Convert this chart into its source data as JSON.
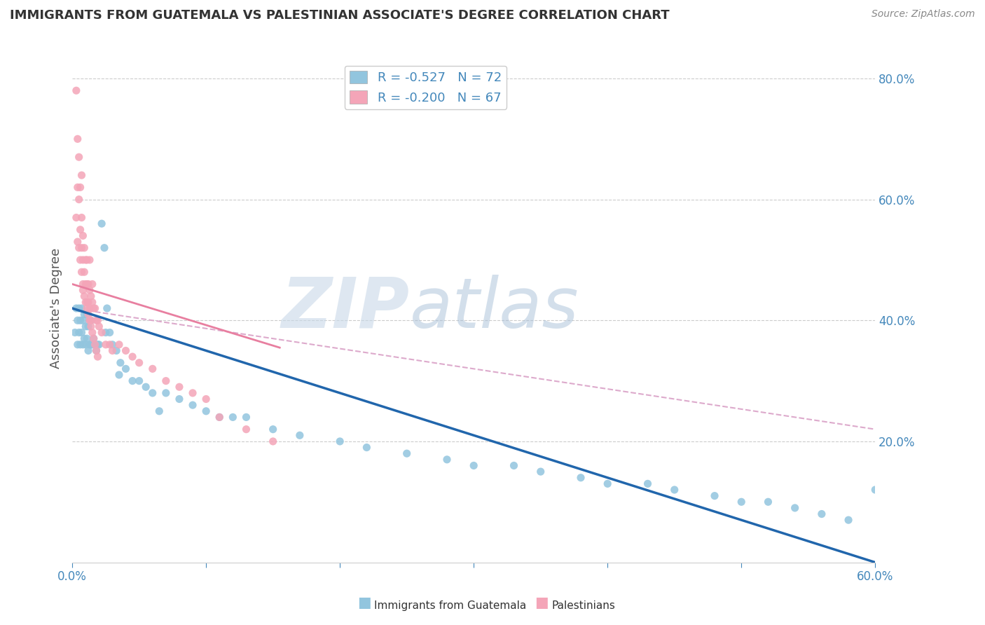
{
  "title": "IMMIGRANTS FROM GUATEMALA VS PALESTINIAN ASSOCIATE'S DEGREE CORRELATION CHART",
  "source": "Source: ZipAtlas.com",
  "ylabel_label": "Associate's Degree",
  "legend_label1": "Immigrants from Guatemala",
  "legend_label2": "Palestinians",
  "r1": -0.527,
  "n1": 72,
  "r2": -0.2,
  "n2": 67,
  "xlim": [
    0.0,
    0.6
  ],
  "ylim": [
    0.0,
    0.84
  ],
  "xticks_show": [
    0.0,
    0.6
  ],
  "yticks": [
    0.2,
    0.4,
    0.6,
    0.8
  ],
  "yticks_grid": [
    0.2,
    0.4,
    0.6,
    0.8
  ],
  "color_blue": "#92c5de",
  "color_pink": "#f4a5b8",
  "color_trend_blue": "#2166ac",
  "color_trend_pink": "#e87fa0",
  "color_dashed": "#ddaacc",
  "blue_trend_x0": 0.0,
  "blue_trend_y0": 0.42,
  "blue_trend_x1": 0.6,
  "blue_trend_y1": 0.0,
  "pink_trend_x0": 0.0,
  "pink_trend_y0": 0.46,
  "pink_trend_x1": 0.155,
  "pink_trend_y1": 0.355,
  "dash_trend_x0": 0.0,
  "dash_trend_y0": 0.42,
  "dash_trend_x1": 0.6,
  "dash_trend_y1": 0.22,
  "blue_x": [
    0.002,
    0.003,
    0.004,
    0.004,
    0.005,
    0.005,
    0.006,
    0.006,
    0.007,
    0.007,
    0.008,
    0.008,
    0.009,
    0.009,
    0.01,
    0.01,
    0.011,
    0.011,
    0.012,
    0.012,
    0.013,
    0.013,
    0.014,
    0.014,
    0.015,
    0.016,
    0.017,
    0.018,
    0.019,
    0.02,
    0.022,
    0.024,
    0.026,
    0.028,
    0.03,
    0.033,
    0.036,
    0.04,
    0.045,
    0.05,
    0.055,
    0.06,
    0.07,
    0.08,
    0.09,
    0.1,
    0.11,
    0.12,
    0.13,
    0.15,
    0.17,
    0.2,
    0.22,
    0.25,
    0.28,
    0.3,
    0.33,
    0.35,
    0.38,
    0.4,
    0.43,
    0.45,
    0.48,
    0.5,
    0.52,
    0.54,
    0.56,
    0.58,
    0.6,
    0.025,
    0.035,
    0.065
  ],
  "blue_y": [
    0.38,
    0.42,
    0.36,
    0.4,
    0.38,
    0.42,
    0.36,
    0.4,
    0.38,
    0.42,
    0.36,
    0.4,
    0.37,
    0.41,
    0.36,
    0.39,
    0.37,
    0.41,
    0.35,
    0.39,
    0.36,
    0.4,
    0.36,
    0.4,
    0.36,
    0.37,
    0.36,
    0.35,
    0.36,
    0.36,
    0.56,
    0.52,
    0.42,
    0.38,
    0.36,
    0.35,
    0.33,
    0.32,
    0.3,
    0.3,
    0.29,
    0.28,
    0.28,
    0.27,
    0.26,
    0.25,
    0.24,
    0.24,
    0.24,
    0.22,
    0.21,
    0.2,
    0.19,
    0.18,
    0.17,
    0.16,
    0.16,
    0.15,
    0.14,
    0.13,
    0.13,
    0.12,
    0.11,
    0.1,
    0.1,
    0.09,
    0.08,
    0.07,
    0.12,
    0.38,
    0.31,
    0.25
  ],
  "pink_x": [
    0.003,
    0.004,
    0.004,
    0.005,
    0.005,
    0.006,
    0.006,
    0.007,
    0.007,
    0.008,
    0.008,
    0.008,
    0.009,
    0.009,
    0.01,
    0.01,
    0.011,
    0.011,
    0.011,
    0.012,
    0.012,
    0.013,
    0.013,
    0.013,
    0.014,
    0.014,
    0.015,
    0.015,
    0.016,
    0.017,
    0.018,
    0.019,
    0.02,
    0.022,
    0.025,
    0.028,
    0.03,
    0.035,
    0.04,
    0.045,
    0.05,
    0.06,
    0.07,
    0.08,
    0.09,
    0.1,
    0.11,
    0.13,
    0.15,
    0.003,
    0.004,
    0.005,
    0.006,
    0.007,
    0.008,
    0.009,
    0.01,
    0.011,
    0.012,
    0.013,
    0.014,
    0.015,
    0.016,
    0.017,
    0.018,
    0.019,
    0.007
  ],
  "pink_y": [
    0.78,
    0.7,
    0.62,
    0.67,
    0.6,
    0.55,
    0.62,
    0.57,
    0.52,
    0.54,
    0.5,
    0.46,
    0.52,
    0.48,
    0.5,
    0.46,
    0.5,
    0.46,
    0.43,
    0.46,
    0.43,
    0.45,
    0.42,
    0.5,
    0.44,
    0.4,
    0.46,
    0.43,
    0.42,
    0.42,
    0.4,
    0.4,
    0.39,
    0.38,
    0.36,
    0.36,
    0.35,
    0.36,
    0.35,
    0.34,
    0.33,
    0.32,
    0.3,
    0.29,
    0.28,
    0.27,
    0.24,
    0.22,
    0.2,
    0.57,
    0.53,
    0.52,
    0.5,
    0.48,
    0.45,
    0.44,
    0.43,
    0.42,
    0.41,
    0.4,
    0.39,
    0.38,
    0.37,
    0.36,
    0.35,
    0.34,
    0.64
  ]
}
